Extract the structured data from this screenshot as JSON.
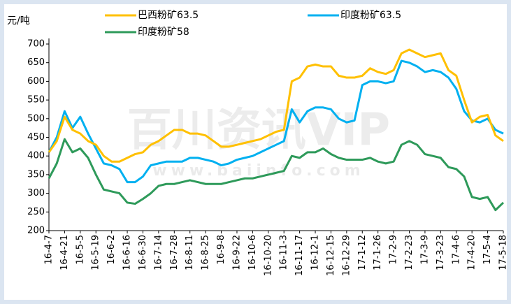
{
  "chart_data": {
    "type": "line",
    "y_label": "元/吨",
    "watermark": "百川资讯VIP",
    "watermark_url": "www.baiinfo.com",
    "categories": [
      "16-4-7",
      null,
      "16-4-21",
      null,
      "16-5-5",
      null,
      "16-5-19",
      null,
      "16-6-2",
      null,
      "16-6-16",
      null,
      "16-6-30",
      null,
      "16-7-14",
      null,
      "16-7-28",
      null,
      "16-8-11",
      null,
      "16-8-25",
      null,
      "16-9-8",
      null,
      "16-9-22",
      null,
      "16-10-6",
      null,
      "16-10-20",
      null,
      "16-11-3",
      null,
      "16-11-17",
      null,
      "16-12-1",
      null,
      "16-12-15",
      null,
      "16-12-29",
      null,
      "17-1-12",
      null,
      "17-1-26",
      null,
      "17-2-9",
      null,
      "17-2-23",
      null,
      "17-3-9",
      null,
      "17-3-23",
      null,
      "17-4-6",
      null,
      "17-4-20",
      null,
      "17-5-4",
      null,
      "17-5-18"
    ],
    "series": [
      {
        "name": "巴西粉矿63.5",
        "color": "#ffc000",
        "values": [
          410,
          440,
          505,
          470,
          460,
          440,
          430,
          400,
          385,
          385,
          395,
          405,
          410,
          430,
          440,
          455,
          470,
          470,
          460,
          460,
          455,
          440,
          425,
          425,
          430,
          435,
          440,
          445,
          455,
          465,
          470,
          600,
          610,
          640,
          645,
          640,
          640,
          615,
          610,
          610,
          615,
          635,
          625,
          620,
          630,
          675,
          685,
          675,
          665,
          670,
          675,
          630,
          615,
          550,
          490,
          505,
          510,
          455,
          440
        ]
      },
      {
        "name": "印度粉矿63.5",
        "color": "#00b0f0",
        "values": [
          410,
          450,
          520,
          475,
          505,
          460,
          420,
          380,
          375,
          365,
          330,
          330,
          345,
          375,
          380,
          385,
          385,
          385,
          395,
          395,
          390,
          385,
          375,
          380,
          390,
          395,
          400,
          410,
          420,
          430,
          440,
          525,
          490,
          520,
          530,
          530,
          525,
          500,
          490,
          495,
          590,
          600,
          600,
          595,
          600,
          655,
          650,
          640,
          625,
          630,
          625,
          610,
          580,
          520,
          495,
          490,
          500,
          470,
          460
        ]
      },
      {
        "name": "印度粉矿58",
        "color": "#2e9a5a",
        "values": [
          340,
          380,
          445,
          410,
          420,
          395,
          350,
          310,
          305,
          300,
          275,
          272,
          285,
          300,
          320,
          325,
          325,
          330,
          335,
          330,
          325,
          325,
          325,
          330,
          335,
          340,
          340,
          345,
          350,
          355,
          360,
          400,
          395,
          410,
          410,
          420,
          405,
          395,
          390,
          390,
          390,
          395,
          385,
          380,
          385,
          430,
          440,
          430,
          405,
          400,
          395,
          370,
          365,
          345,
          290,
          285,
          290,
          255,
          275
        ]
      }
    ],
    "ylim": [
      200,
      700
    ],
    "yticks": [
      200,
      250,
      300,
      350,
      400,
      450,
      500,
      550,
      600,
      650,
      700
    ],
    "grid": false
  }
}
